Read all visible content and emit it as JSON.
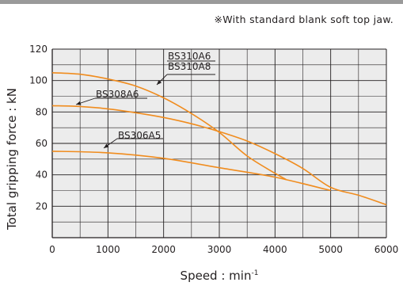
{
  "note": "※With standard blank soft top jaw.",
  "chart_data": {
    "type": "line",
    "xlabel": "Speed : min",
    "xlabel_unit_sup": "-1",
    "ylabel": "Total gripping force : kN",
    "xlim": [
      0,
      6000
    ],
    "ylim": [
      0,
      120
    ],
    "x_ticks": [
      0,
      1000,
      2000,
      3000,
      4000,
      5000,
      6000
    ],
    "y_ticks": [
      20,
      40,
      60,
      80,
      100,
      120
    ],
    "grid": true,
    "line_color": "#f08c1e",
    "background_color": "#ececec",
    "series": [
      {
        "name": "BS310A6\nBS310A8",
        "name_lines": [
          "BS310A6",
          "BS310A8"
        ],
        "x": [
          0,
          500,
          1000,
          1500,
          2000,
          2500,
          3000,
          3500,
          4000,
          4200
        ],
        "y": [
          105,
          104,
          101,
          96.5,
          89,
          79,
          67,
          52,
          41,
          37
        ]
      },
      {
        "name": "BS308A6",
        "name_lines": [
          "BS308A6"
        ],
        "x": [
          0,
          500,
          1000,
          1500,
          2000,
          2500,
          3000,
          3500,
          4000,
          4500,
          5000,
          5500,
          6000
        ],
        "y": [
          84,
          83.5,
          82,
          79.5,
          76.5,
          72.5,
          67.5,
          61.5,
          53.5,
          44,
          32,
          27,
          21
        ]
      },
      {
        "name": "BS306A5",
        "name_lines": [
          "BS306A5"
        ],
        "x": [
          0,
          1000,
          2000,
          3000,
          4000,
          5000
        ],
        "y": [
          55,
          54,
          50.5,
          44.5,
          38.5,
          30
        ]
      }
    ]
  }
}
